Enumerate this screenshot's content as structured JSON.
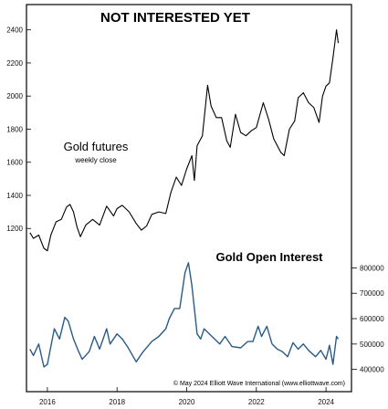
{
  "chart_data": {
    "type": "line",
    "title": "NOT INTERESTED YET",
    "copyright": "© May 2024 Elliott Wave International (www.elliottwave.com)",
    "x_ticks": [
      "2016",
      "2018",
      "2020",
      "2022",
      "2024"
    ],
    "left_axis": {
      "ticks": [
        "1200",
        "1400",
        "1600",
        "1800",
        "2000",
        "2200",
        "2400"
      ],
      "range": [
        1080,
        2470
      ]
    },
    "right_axis": {
      "ticks": [
        "400000",
        "500000",
        "600000",
        "700000",
        "800000"
      ],
      "range": [
        370000,
        920000
      ]
    },
    "grid": false,
    "series": [
      {
        "name": "Gold futures",
        "sublabel": "weekly close",
        "axis": "left",
        "points": [
          [
            "2015.5",
            1175
          ],
          [
            "2015.6",
            1140
          ],
          [
            "2015.75",
            1160
          ],
          [
            "2015.9",
            1080
          ],
          [
            "2016.0",
            1065
          ],
          [
            "2016.1",
            1160
          ],
          [
            "2016.25",
            1240
          ],
          [
            "2016.4",
            1255
          ],
          [
            "2016.55",
            1330
          ],
          [
            "2016.65",
            1345
          ],
          [
            "2016.75",
            1300
          ],
          [
            "2016.85",
            1210
          ],
          [
            "2016.95",
            1150
          ],
          [
            "2017.1",
            1220
          ],
          [
            "2017.3",
            1255
          ],
          [
            "2017.5",
            1220
          ],
          [
            "2017.7",
            1335
          ],
          [
            "2017.9",
            1275
          ],
          [
            "2018.0",
            1320
          ],
          [
            "2018.15",
            1340
          ],
          [
            "2018.35",
            1300
          ],
          [
            "2018.55",
            1230
          ],
          [
            "2018.7",
            1190
          ],
          [
            "2018.85",
            1215
          ],
          [
            "2019.0",
            1285
          ],
          [
            "2019.2",
            1300
          ],
          [
            "2019.4",
            1290
          ],
          [
            "2019.55",
            1420
          ],
          [
            "2019.7",
            1510
          ],
          [
            "2019.85",
            1460
          ],
          [
            "2020.0",
            1560
          ],
          [
            "2020.15",
            1640
          ],
          [
            "2020.22",
            1490
          ],
          [
            "2020.3",
            1700
          ],
          [
            "2020.45",
            1760
          ],
          [
            "2020.6",
            2065
          ],
          [
            "2020.7",
            1940
          ],
          [
            "2020.85",
            1870
          ],
          [
            "2021.0",
            1870
          ],
          [
            "2021.15",
            1730
          ],
          [
            "2021.25",
            1690
          ],
          [
            "2021.4",
            1890
          ],
          [
            "2021.55",
            1780
          ],
          [
            "2021.7",
            1760
          ],
          [
            "2021.85",
            1790
          ],
          [
            "2022.0",
            1810
          ],
          [
            "2022.2",
            1960
          ],
          [
            "2022.35",
            1860
          ],
          [
            "2022.5",
            1740
          ],
          [
            "2022.7",
            1660
          ],
          [
            "2022.8",
            1640
          ],
          [
            "2022.95",
            1800
          ],
          [
            "2023.1",
            1850
          ],
          [
            "2023.2",
            1990
          ],
          [
            "2023.35",
            2020
          ],
          [
            "2023.5",
            1960
          ],
          [
            "2023.65",
            1930
          ],
          [
            "2023.8",
            1840
          ],
          [
            "2023.9",
            2000
          ],
          [
            "2024.0",
            2060
          ],
          [
            "2024.1",
            2080
          ],
          [
            "2024.2",
            2230
          ],
          [
            "2024.3",
            2400
          ],
          [
            "2024.35",
            2320
          ]
        ]
      },
      {
        "name": "Gold Open Interest",
        "axis": "right",
        "points": [
          [
            "2015.5",
            480000
          ],
          [
            "2015.6",
            455000
          ],
          [
            "2015.75",
            500000
          ],
          [
            "2015.9",
            410000
          ],
          [
            "2016.0",
            420000
          ],
          [
            "2016.2",
            560000
          ],
          [
            "2016.35",
            520000
          ],
          [
            "2016.5",
            605000
          ],
          [
            "2016.6",
            590000
          ],
          [
            "2016.75",
            520000
          ],
          [
            "2016.9",
            470000
          ],
          [
            "2017.0",
            440000
          ],
          [
            "2017.2",
            470000
          ],
          [
            "2017.35",
            530000
          ],
          [
            "2017.5",
            480000
          ],
          [
            "2017.7",
            560000
          ],
          [
            "2017.8",
            500000
          ],
          [
            "2018.0",
            540000
          ],
          [
            "2018.15",
            520000
          ],
          [
            "2018.3",
            490000
          ],
          [
            "2018.55",
            430000
          ],
          [
            "2018.75",
            470000
          ],
          [
            "2019.0",
            510000
          ],
          [
            "2019.2",
            530000
          ],
          [
            "2019.4",
            560000
          ],
          [
            "2019.5",
            600000
          ],
          [
            "2019.65",
            640000
          ],
          [
            "2019.8",
            640000
          ],
          [
            "2019.95",
            780000
          ],
          [
            "2020.05",
            820000
          ],
          [
            "2020.15",
            730000
          ],
          [
            "2020.3",
            540000
          ],
          [
            "2020.4",
            520000
          ],
          [
            "2020.5",
            560000
          ],
          [
            "2020.65",
            540000
          ],
          [
            "2020.8",
            520000
          ],
          [
            "2020.95",
            500000
          ],
          [
            "2021.1",
            530000
          ],
          [
            "2021.3",
            490000
          ],
          [
            "2021.55",
            485000
          ],
          [
            "2021.75",
            510000
          ],
          [
            "2021.9",
            510000
          ],
          [
            "2022.05",
            570000
          ],
          [
            "2022.15",
            530000
          ],
          [
            "2022.3",
            570000
          ],
          [
            "2022.45",
            500000
          ],
          [
            "2022.6",
            480000
          ],
          [
            "2022.75",
            470000
          ],
          [
            "2022.9",
            450000
          ],
          [
            "2023.05",
            505000
          ],
          [
            "2023.2",
            480000
          ],
          [
            "2023.35",
            500000
          ],
          [
            "2023.5",
            475000
          ],
          [
            "2023.7",
            450000
          ],
          [
            "2023.85",
            475000
          ],
          [
            "2024.0",
            440000
          ],
          [
            "2024.1",
            495000
          ],
          [
            "2024.2",
            420000
          ],
          [
            "2024.3",
            530000
          ],
          [
            "2024.35",
            520000
          ]
        ]
      }
    ],
    "colors": {
      "gold": "#000000",
      "oi": "#2a5b86",
      "frame": "#000000",
      "background": "#ffffff"
    }
  }
}
